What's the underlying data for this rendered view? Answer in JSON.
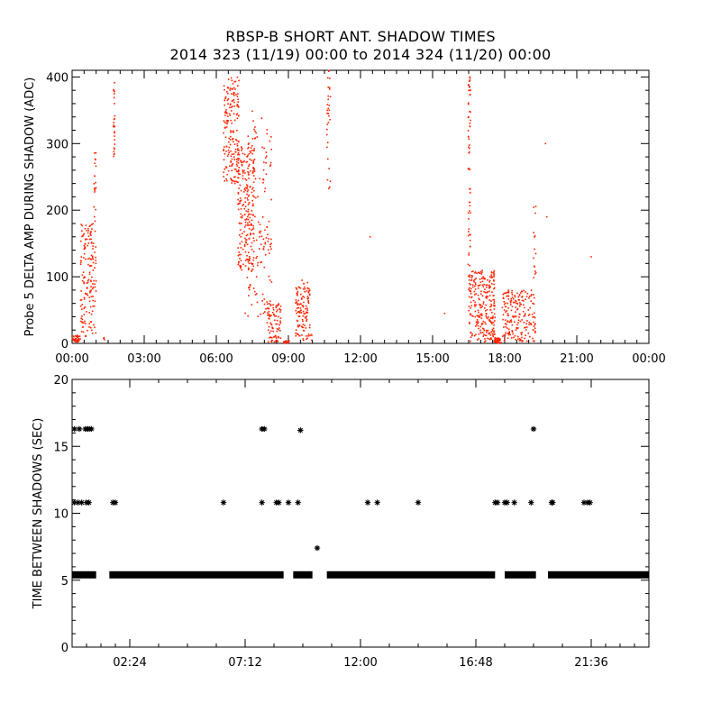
{
  "title": "RBSP-B SHORT ANT. SHADOW TIMES",
  "subtitle": "2014 323 (11/19) 00:00 to 2014 324 (11/20) 00:00",
  "colors": {
    "amp_points": "#ff2200",
    "interval_points": "#000000",
    "axes": "#000000",
    "background": "#ffffff"
  },
  "chart_data": [
    {
      "type": "scatter",
      "ylabel": "Probe 5 DELTA AMP DURING SHADOW (ADC)",
      "xlabel": "",
      "x_unit": "hour of day",
      "xlim": [
        0,
        24
      ],
      "ylim": [
        0,
        410
      ],
      "x_tick_labels": [
        "00:00",
        "03:00",
        "06:00",
        "09:00",
        "12:00",
        "15:00",
        "18:00",
        "21:00",
        "00:00"
      ],
      "x_tick_values": [
        0,
        3,
        6,
        9,
        12,
        15,
        18,
        21,
        24
      ],
      "y_tick_labels": [
        "0",
        "100",
        "200",
        "300",
        "400"
      ],
      "y_tick_values": [
        0,
        100,
        200,
        300,
        400
      ],
      "marker": "dot",
      "series": [
        {
          "clusters": [
            {
              "x_start": 0.0,
              "x_end": 0.35,
              "y_start": 2,
              "y_end": 12,
              "count": 40
            },
            {
              "x_start": 0.35,
              "x_end": 1.0,
              "y_start": 10,
              "y_end": 180,
              "count": 160
            },
            {
              "x_start": 0.9,
              "x_end": 1.0,
              "y_start": 180,
              "y_end": 290,
              "count": 20
            },
            {
              "x_start": 1.3,
              "x_end": 1.35,
              "y_start": 5,
              "y_end": 10,
              "count": 3
            },
            {
              "x_start": 1.72,
              "x_end": 1.78,
              "y_start": 280,
              "y_end": 400,
              "count": 25
            },
            {
              "x_start": 6.3,
              "x_end": 6.95,
              "y_start": 240,
              "y_end": 400,
              "count": 180
            },
            {
              "x_start": 6.9,
              "x_end": 7.6,
              "y_start": 110,
              "y_end": 300,
              "count": 220
            },
            {
              "x_start": 7.2,
              "x_end": 8.3,
              "y_start": 40,
              "y_end": 350,
              "count": 140
            },
            {
              "x_start": 8.1,
              "x_end": 8.7,
              "y_start": 2,
              "y_end": 60,
              "count": 90
            },
            {
              "x_start": 8.8,
              "x_end": 9.05,
              "y_start": 0,
              "y_end": 4,
              "count": 20
            },
            {
              "x_start": 9.3,
              "x_end": 9.9,
              "y_start": 3,
              "y_end": 95,
              "count": 120
            },
            {
              "x_start": 9.95,
              "x_end": 10.0,
              "y_start": 0,
              "y_end": 15,
              "count": 4
            },
            {
              "x_start": 10.6,
              "x_end": 10.75,
              "y_start": 230,
              "y_end": 410,
              "count": 30
            },
            {
              "x_start": 16.48,
              "x_end": 16.58,
              "y_start": 100,
              "y_end": 400,
              "count": 60
            },
            {
              "x_start": 16.5,
              "x_end": 17.6,
              "y_start": 2,
              "y_end": 110,
              "count": 260
            },
            {
              "x_start": 17.55,
              "x_end": 17.85,
              "y_start": 0,
              "y_end": 8,
              "count": 40
            },
            {
              "x_start": 17.9,
              "x_end": 19.3,
              "y_start": 3,
              "y_end": 80,
              "count": 200
            },
            {
              "x_start": 19.2,
              "x_end": 19.3,
              "y_start": 80,
              "y_end": 220,
              "count": 15
            }
          ],
          "points": [
            [
              12.4,
              160
            ],
            [
              19.7,
              300
            ],
            [
              19.75,
              190
            ],
            [
              21.6,
              130
            ],
            [
              15.5,
              45
            ],
            [
              10.7,
              350
            ],
            [
              16.5,
              340
            ],
            [
              8.9,
              2
            ],
            [
              17.0,
              25
            ]
          ]
        }
      ]
    },
    {
      "type": "scatter",
      "ylabel": "TIME BETWEEN SHADOWS (SEC)",
      "xlabel": "",
      "x_unit": "hour of day",
      "xlim": [
        0,
        24
      ],
      "ylim": [
        0,
        20
      ],
      "x_tick_labels": [
        "02:24",
        "07:12",
        "12:00",
        "16:48",
        "21:36"
      ],
      "x_tick_values": [
        2.4,
        7.2,
        12.0,
        16.8,
        21.6
      ],
      "y_tick_labels": [
        "0",
        "5",
        "10",
        "15",
        "20"
      ],
      "y_tick_values": [
        0,
        5,
        10,
        15,
        20
      ],
      "marker": "asterisk",
      "series": [
        {
          "bands": [
            {
              "y": 5.4,
              "x_start": 0.0,
              "x_end": 1.0
            },
            {
              "y": 5.4,
              "x_start": 1.55,
              "x_end": 8.8
            },
            {
              "y": 5.4,
              "x_start": 9.2,
              "x_end": 10.0
            },
            {
              "y": 5.4,
              "x_start": 10.6,
              "x_end": 17.6
            },
            {
              "y": 5.4,
              "x_start": 18.0,
              "x_end": 19.3
            },
            {
              "y": 5.4,
              "x_start": 19.8,
              "x_end": 24.0
            }
          ],
          "points": [
            [
              0.1,
              16.3
            ],
            [
              0.3,
              16.3
            ],
            [
              0.55,
              16.3
            ],
            [
              0.65,
              16.3
            ],
            [
              0.72,
              16.3
            ],
            [
              0.8,
              16.3
            ],
            [
              0.1,
              10.8
            ],
            [
              0.25,
              10.8
            ],
            [
              0.4,
              10.8
            ],
            [
              0.6,
              10.8
            ],
            [
              0.7,
              10.8
            ],
            [
              1.7,
              10.8
            ],
            [
              1.8,
              10.8
            ],
            [
              6.3,
              10.8
            ],
            [
              7.9,
              16.3
            ],
            [
              8.0,
              16.3
            ],
            [
              7.9,
              10.8
            ],
            [
              8.5,
              10.8
            ],
            [
              8.6,
              10.8
            ],
            [
              9.0,
              10.8
            ],
            [
              9.4,
              10.8
            ],
            [
              9.5,
              16.2
            ],
            [
              10.2,
              7.4
            ],
            [
              12.3,
              10.8
            ],
            [
              12.7,
              10.8
            ],
            [
              14.4,
              10.8
            ],
            [
              17.6,
              10.8
            ],
            [
              17.7,
              10.8
            ],
            [
              18.0,
              10.8
            ],
            [
              18.1,
              10.8
            ],
            [
              18.4,
              10.8
            ],
            [
              19.1,
              10.8
            ],
            [
              19.2,
              16.3
            ],
            [
              19.95,
              10.8
            ],
            [
              20.0,
              10.8
            ],
            [
              21.3,
              10.8
            ],
            [
              21.45,
              10.8
            ],
            [
              21.55,
              10.8
            ]
          ]
        }
      ]
    }
  ]
}
